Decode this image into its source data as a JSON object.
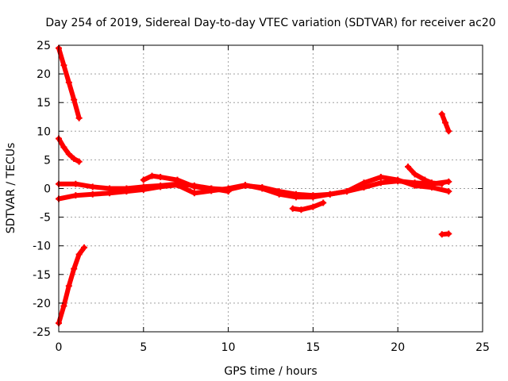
{
  "chart_data": {
    "type": "scatter",
    "title": "Day 254 of 2019, Sidereal Day-to-day VTEC variation (SDTVAR) for receiver ac20",
    "xlabel": "GPS time / hours",
    "ylabel": "SDTVAR / TECUs",
    "xlim": [
      0,
      25
    ],
    "ylim": [
      -25,
      25
    ],
    "x_ticks": [
      0,
      5,
      10,
      15,
      20,
      25
    ],
    "y_ticks": [
      -25,
      -20,
      -15,
      -10,
      -5,
      0,
      5,
      10,
      15,
      20,
      25
    ],
    "grid": true,
    "legend": "none",
    "marker": "plus",
    "color": "#ff0000",
    "series": [
      {
        "name": "arc-top-descending",
        "x": [
          0.0,
          0.3,
          0.6,
          0.9,
          1.2
        ],
        "y": [
          24.5,
          21.5,
          18.5,
          15.5,
          12.3
        ]
      },
      {
        "name": "arc-upper-decay",
        "x": [
          0.0,
          0.3,
          0.6,
          0.9,
          1.2
        ],
        "y": [
          8.7,
          7.2,
          6.0,
          5.2,
          4.7
        ]
      },
      {
        "name": "arc-bottom-rising",
        "x": [
          0.0,
          0.3,
          0.6,
          0.9,
          1.2,
          1.5
        ],
        "y": [
          -23.5,
          -20.5,
          -17.0,
          -14.0,
          -11.5,
          -10.3
        ]
      },
      {
        "name": "arc-main-upper",
        "x": [
          0,
          1,
          2,
          3,
          4,
          5,
          6,
          7,
          8,
          9,
          10,
          11,
          12,
          13,
          14,
          15,
          16,
          17,
          18,
          19,
          20,
          21,
          22,
          23
        ],
        "y": [
          0.8,
          0.8,
          0.3,
          0.0,
          0.0,
          0.3,
          0.5,
          0.8,
          0.5,
          0.0,
          -0.2,
          0.5,
          0.2,
          -0.5,
          -1.0,
          -1.2,
          -1.0,
          -0.5,
          0.2,
          1.0,
          1.3,
          1.0,
          0.8,
          1.2
        ]
      },
      {
        "name": "arc-main-lower",
        "x": [
          0,
          1,
          2,
          3,
          4,
          5,
          6,
          7,
          8,
          9,
          10,
          11,
          12,
          13,
          14,
          15,
          16,
          17,
          18,
          19,
          20,
          21,
          22,
          23
        ],
        "y": [
          -1.8,
          -1.2,
          -1.0,
          -0.8,
          -0.5,
          -0.2,
          0.3,
          0.6,
          -0.8,
          -0.4,
          0.0,
          0.6,
          0.0,
          -1.0,
          -1.5,
          -1.5,
          -1.0,
          -0.5,
          1.0,
          2.0,
          1.5,
          0.5,
          0.2,
          -0.5
        ]
      },
      {
        "name": "arc-midday-bump",
        "x": [
          5.0,
          5.5,
          6.0,
          7.0,
          8.0,
          9.0,
          10.0
        ],
        "y": [
          1.5,
          2.2,
          2.0,
          1.5,
          0.3,
          0.0,
          -0.5
        ]
      },
      {
        "name": "arc-afternoon-dip",
        "x": [
          13.8,
          14.3,
          15.0,
          15.6
        ],
        "y": [
          -3.5,
          -3.7,
          -3.2,
          -2.5
        ]
      },
      {
        "name": "arc-evening-hump",
        "x": [
          20.6,
          21.0,
          21.6,
          22.0,
          22.6
        ],
        "y": [
          3.8,
          2.5,
          1.5,
          1.0,
          0.8
        ]
      },
      {
        "name": "arc-late-descending",
        "x": [
          22.6,
          22.8,
          23.0
        ],
        "y": [
          13.0,
          11.5,
          10.0
        ]
      },
      {
        "name": "arc-late-negative",
        "x": [
          22.6,
          23.0
        ],
        "y": [
          -8.0,
          -7.9
        ]
      }
    ]
  }
}
